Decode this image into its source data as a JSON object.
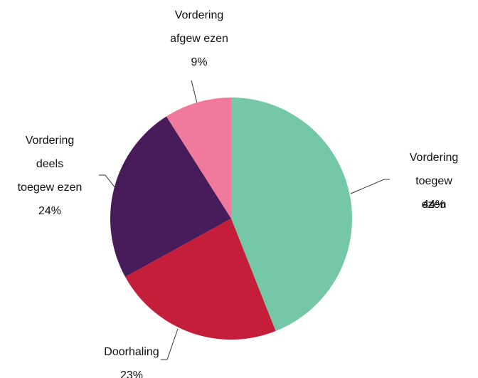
{
  "chart_data": {
    "type": "pie",
    "categories": [
      "Vordering\ntoegew ezen",
      "Doorhaling",
      "Vordering\ndeels\ntoegew ezen",
      "Vordering\nafgew ezen"
    ],
    "values": [
      44,
      23,
      24,
      9
    ],
    "value_labels": [
      "44%",
      "23%",
      "24%",
      "9%"
    ],
    "colors": [
      "#74c8a8",
      "#c41e3a",
      "#481c5a",
      "#f07a9b"
    ]
  }
}
